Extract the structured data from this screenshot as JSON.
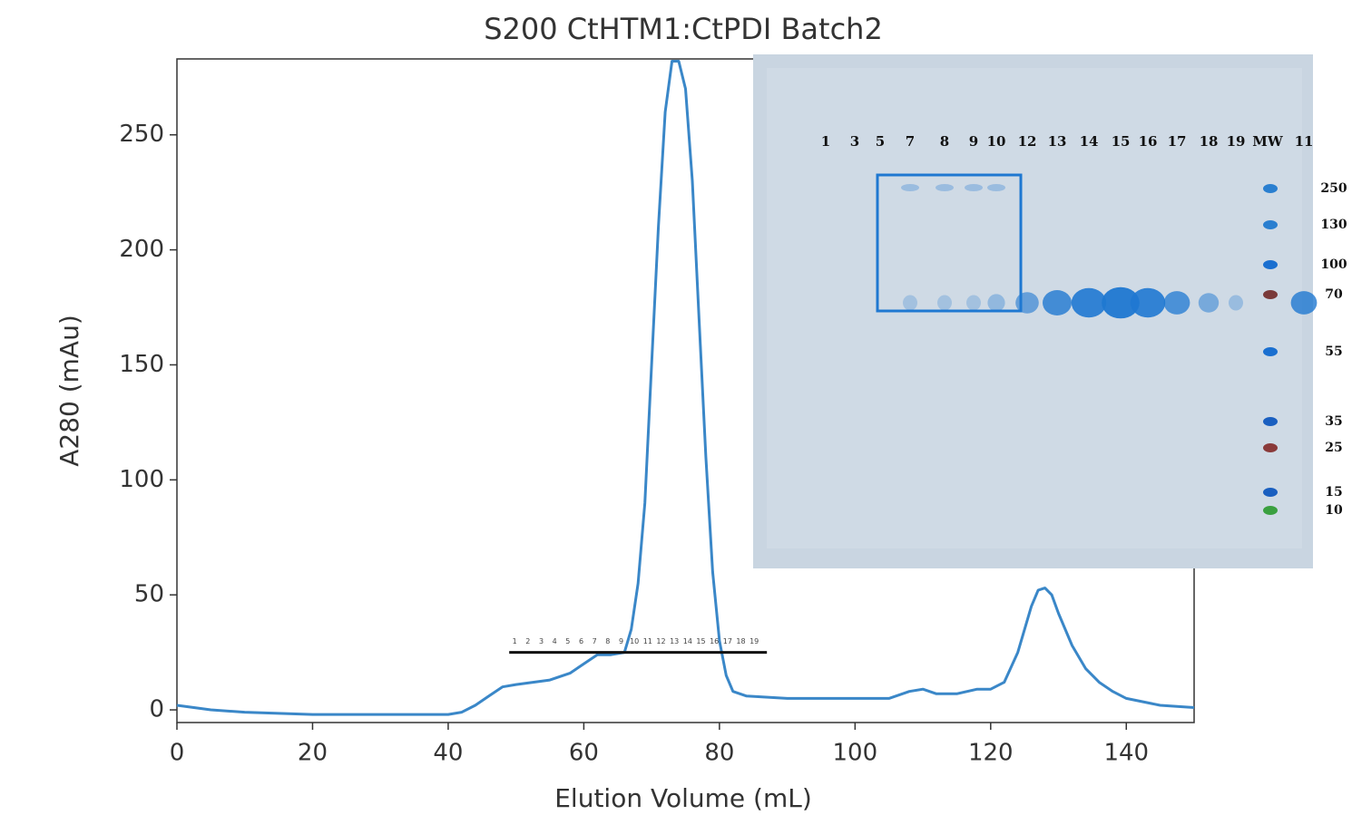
{
  "chart_data": {
    "type": "line",
    "title": "S200 CtHTM1:CtPDI Batch2",
    "x_label": "Elution Volume (mL)",
    "y_label": "A280 (mAu)",
    "color": "#3a87c8",
    "x": [
      0,
      5,
      10,
      20,
      30,
      40,
      42,
      44,
      46,
      48,
      50,
      55,
      58,
      60,
      62,
      64,
      66,
      67,
      68,
      69,
      70,
      71,
      72,
      73,
      74,
      75,
      76,
      77,
      78,
      79,
      80,
      81,
      82,
      84,
      90,
      100,
      105,
      108,
      110,
      112,
      115,
      118,
      120,
      122,
      124,
      126,
      127,
      128,
      129,
      130,
      132,
      134,
      136,
      138,
      140,
      145,
      150
    ],
    "values": [
      2,
      0,
      -1,
      -2,
      -2,
      -2,
      -1,
      2,
      6,
      10,
      11,
      13,
      16,
      20,
      24,
      24,
      25,
      35,
      55,
      90,
      150,
      210,
      260,
      282,
      282,
      270,
      230,
      170,
      110,
      60,
      30,
      15,
      8,
      6,
      5,
      5,
      5,
      8,
      9,
      7,
      7,
      9,
      9,
      12,
      25,
      45,
      52,
      53,
      50,
      42,
      28,
      18,
      12,
      8,
      5,
      2,
      1
    ],
    "xlim": [
      0,
      150
    ],
    "ylim": [
      -5.5,
      283
    ],
    "xticks": [
      0,
      20,
      40,
      60,
      80,
      100,
      120,
      140
    ],
    "yticks": [
      0,
      50,
      100,
      150,
      200,
      250
    ],
    "fraction_bar": {
      "x": [
        49,
        87
      ],
      "y": 25,
      "labels": [
        "1",
        "2",
        "3",
        "4",
        "5",
        "6",
        "7",
        "8",
        "9",
        "10",
        "11",
        "12",
        "13",
        "14",
        "15",
        "16",
        "17",
        "18",
        "19"
      ]
    }
  },
  "inset": {
    "lanes": [
      "1",
      "3",
      "5",
      "7",
      "8",
      "9",
      "10",
      "12",
      "13",
      "14",
      "15",
      "16",
      "17",
      "18",
      "19",
      "MW",
      "11"
    ],
    "mw": [
      250,
      130,
      100,
      70,
      55,
      35,
      25,
      15,
      10
    ]
  }
}
